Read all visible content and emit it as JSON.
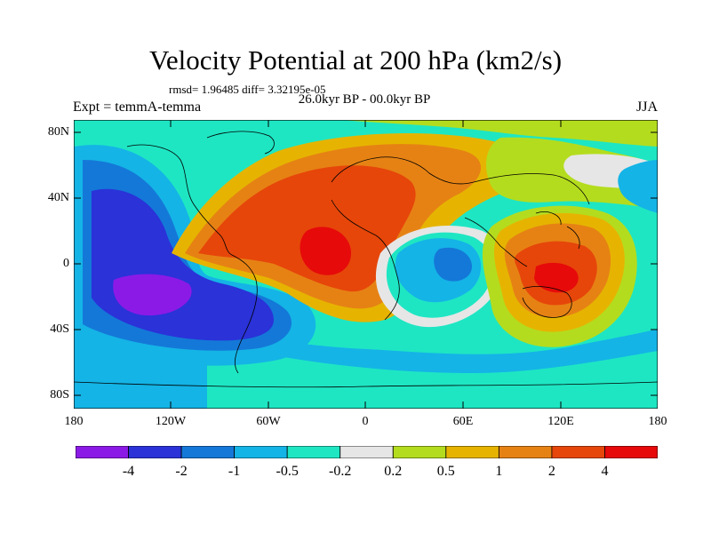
{
  "title": "Velocity Potential at 200 hPa (km2/s)",
  "stats_text": "rmsd= 1.96485 diff= 3.32195e-05",
  "period_text": "26.0kyr BP - 00.0kyr BP",
  "expt_text": "Expt = temmA-temma",
  "season": "JJA",
  "lat_labels": [
    "80N",
    "40N",
    "0",
    "40S",
    "80S"
  ],
  "lon_labels": [
    "180",
    "120W",
    "60W",
    "0",
    "60E",
    "120E",
    "180"
  ],
  "colorbar": {
    "colors": [
      "#8c1ae6",
      "#2a32d8",
      "#1478d8",
      "#14b4e6",
      "#1ee6c3",
      "#e6e6e6",
      "#b4dc1e",
      "#e6b400",
      "#e68214",
      "#e6460a",
      "#e60a0a"
    ],
    "labels": [
      "-4",
      "-2",
      "-1",
      "-0.5",
      "-0.2",
      "0.2",
      "0.5",
      "1",
      "2",
      "4"
    ]
  }
}
